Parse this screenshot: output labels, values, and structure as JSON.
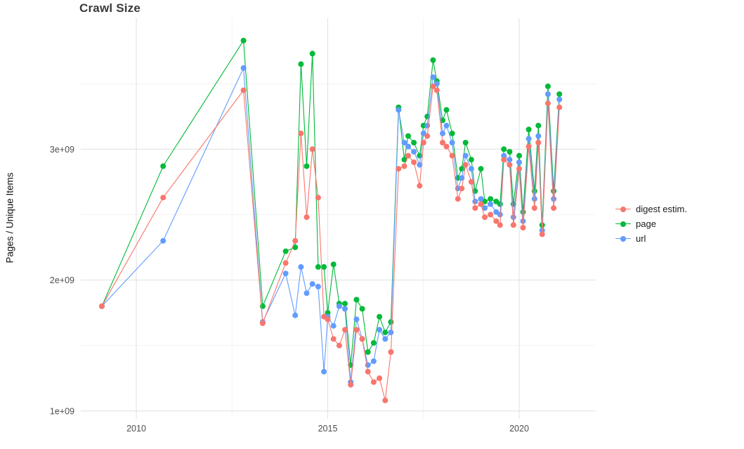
{
  "title": "Crawl Size",
  "ylabel": "Pages / Unique Items",
  "legend": {
    "items": [
      {
        "label": "digest estim.",
        "color": "#F8766D"
      },
      {
        "label": "page",
        "color": "#00BA38"
      },
      {
        "label": "url",
        "color": "#619CFF"
      }
    ]
  },
  "chart_data": {
    "type": "line",
    "title": "Crawl Size",
    "xlabel": "",
    "ylabel": "Pages / Unique Items",
    "value_unit": "values in billions (axis shown as 1e+09 .. 3e+09)",
    "x": [
      2009.1,
      2010.7,
      2012.8,
      2013.3,
      2013.9,
      2014.15,
      2014.3,
      2014.45,
      2014.6,
      2014.75,
      2014.9,
      2015.0,
      2015.15,
      2015.3,
      2015.45,
      2015.6,
      2015.75,
      2015.9,
      2016.05,
      2016.2,
      2016.35,
      2016.5,
      2016.65,
      2016.85,
      2017.0,
      2017.1,
      2017.25,
      2017.4,
      2017.5,
      2017.6,
      2017.75,
      2017.85,
      2018.0,
      2018.1,
      2018.25,
      2018.4,
      2018.5,
      2018.6,
      2018.75,
      2018.85,
      2019.0,
      2019.1,
      2019.25,
      2019.4,
      2019.5,
      2019.6,
      2019.75,
      2019.85,
      2020.0,
      2020.1,
      2020.25,
      2020.4,
      2020.5,
      2020.6,
      2020.75,
      2020.9,
      2021.05
    ],
    "series": [
      {
        "name": "digest estim.",
        "color": "#F8766D",
        "values": [
          1.8,
          2.63,
          3.45,
          1.67,
          2.13,
          2.3,
          3.12,
          2.48,
          3.0,
          2.63,
          1.72,
          1.7,
          1.55,
          1.5,
          1.62,
          1.2,
          1.62,
          1.55,
          1.3,
          1.22,
          1.25,
          1.08,
          1.45,
          2.85,
          2.87,
          2.95,
          2.9,
          2.72,
          3.05,
          3.1,
          3.48,
          3.45,
          3.05,
          3.02,
          2.95,
          2.62,
          2.7,
          2.88,
          2.75,
          2.55,
          2.58,
          2.48,
          2.5,
          2.45,
          2.42,
          2.92,
          2.88,
          2.42,
          2.85,
          2.4,
          3.02,
          2.55,
          3.05,
          2.35,
          3.35,
          2.55,
          3.32
        ]
      },
      {
        "name": "page",
        "color": "#00BA38",
        "values": [
          1.8,
          2.87,
          3.83,
          1.8,
          2.22,
          2.25,
          3.65,
          2.87,
          3.73,
          2.1,
          2.1,
          1.75,
          2.12,
          1.82,
          1.82,
          1.35,
          1.85,
          1.78,
          1.45,
          1.52,
          1.72,
          1.6,
          1.68,
          3.32,
          2.92,
          3.1,
          3.05,
          2.95,
          3.18,
          3.25,
          3.68,
          3.52,
          3.22,
          3.3,
          3.12,
          2.78,
          2.85,
          3.05,
          2.92,
          2.68,
          2.85,
          2.6,
          2.62,
          2.6,
          2.58,
          3.0,
          2.98,
          2.58,
          2.95,
          2.52,
          3.15,
          2.68,
          3.18,
          2.42,
          3.48,
          2.68,
          3.42
        ]
      },
      {
        "name": "url",
        "color": "#619CFF",
        "values": [
          1.8,
          2.3,
          3.62,
          1.68,
          2.05,
          1.73,
          2.1,
          1.9,
          1.97,
          1.95,
          1.3,
          1.72,
          1.65,
          1.8,
          1.78,
          1.22,
          1.7,
          1.55,
          1.35,
          1.38,
          1.62,
          1.55,
          1.6,
          3.3,
          3.05,
          3.02,
          2.98,
          2.88,
          3.12,
          3.18,
          3.55,
          3.5,
          3.12,
          3.18,
          3.05,
          2.7,
          2.78,
          2.95,
          2.85,
          2.6,
          2.62,
          2.55,
          2.58,
          2.52,
          2.5,
          2.95,
          2.92,
          2.48,
          2.9,
          2.45,
          3.08,
          2.62,
          3.1,
          2.38,
          3.42,
          2.62,
          3.38
        ]
      }
    ],
    "xlim": [
      2008.55,
      2022.0
    ],
    "ylim": [
      0.94,
      4.0
    ],
    "x_ticks": [
      {
        "value": 2010,
        "label": "2010"
      },
      {
        "value": 2015,
        "label": "2015"
      },
      {
        "value": 2020,
        "label": "2020"
      }
    ],
    "x_minor_ticks": [
      2012.5,
      2017.5
    ],
    "y_ticks": [
      {
        "value": 1,
        "label": "1e+09"
      },
      {
        "value": 2,
        "label": "2e+09"
      },
      {
        "value": 3,
        "label": "3e+09"
      }
    ],
    "y_minor_ticks": [
      1.5,
      2.5,
      3.5
    ],
    "grid": true,
    "legend_position": "right",
    "marker": "circle",
    "draw_order": [
      "page",
      "url",
      "digest estim."
    ]
  }
}
